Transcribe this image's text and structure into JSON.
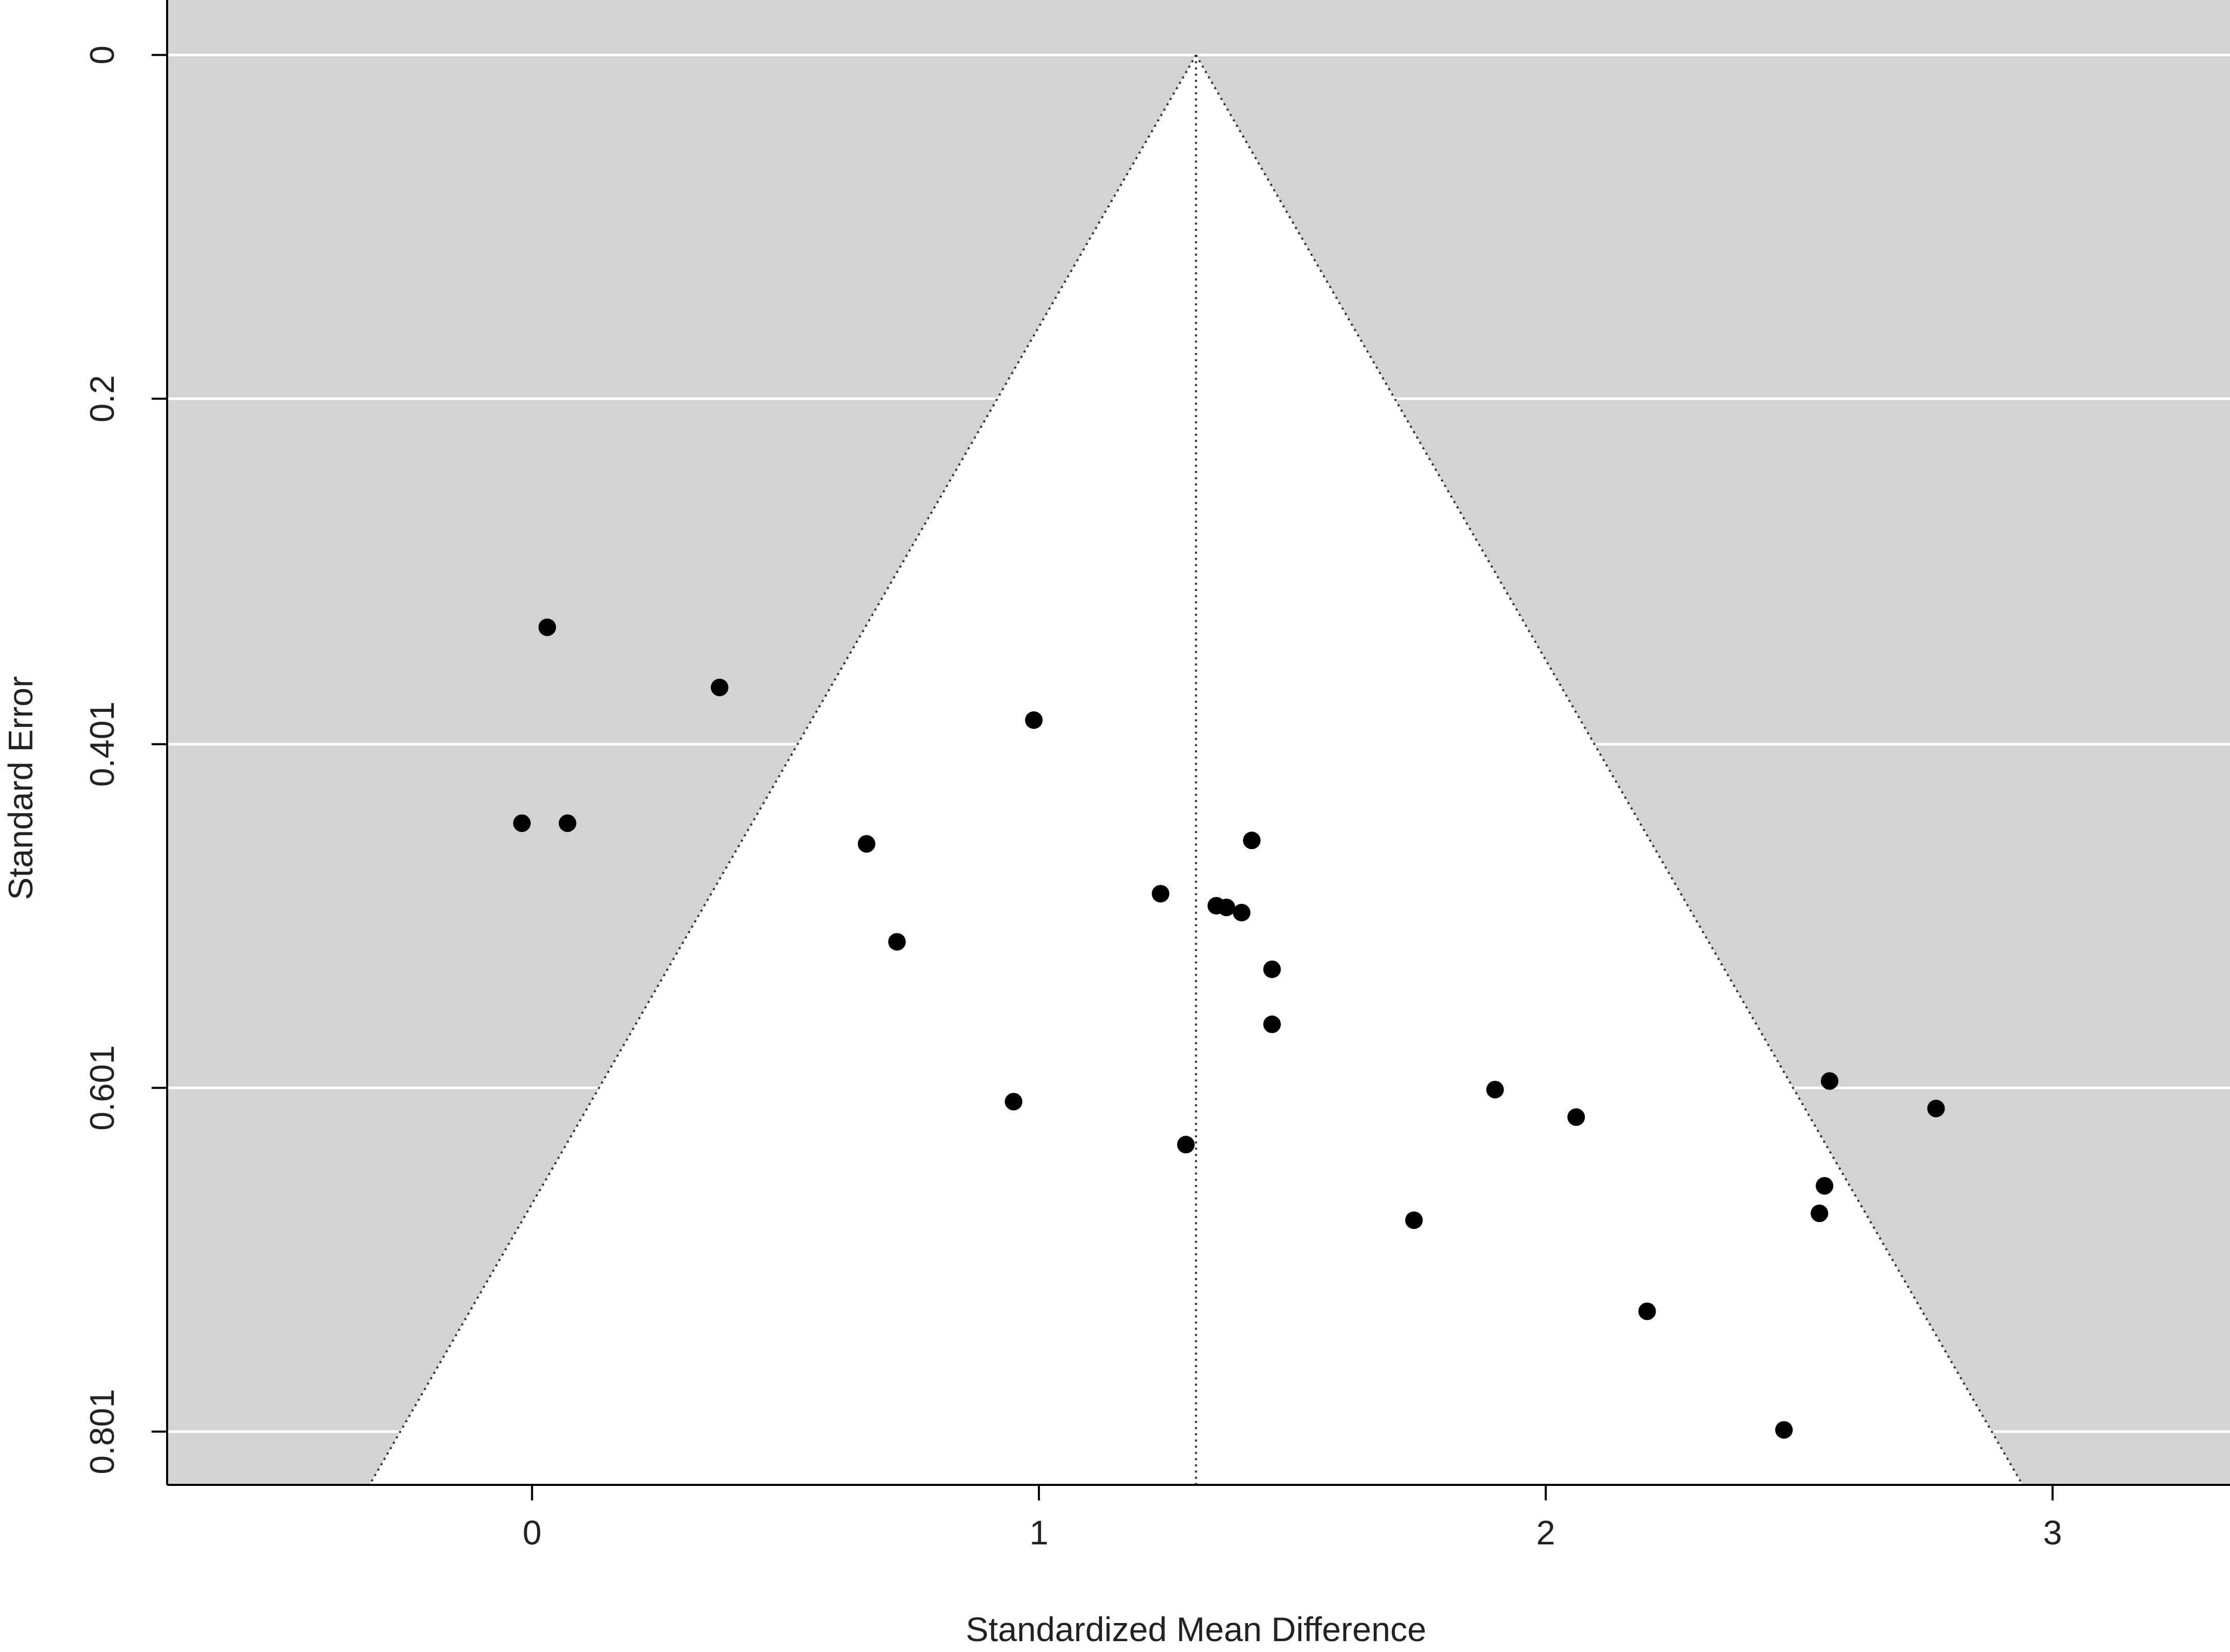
{
  "chart_data": {
    "type": "scatter",
    "subtype": "funnel plot",
    "title": "",
    "xlabel": "Standardized Mean Difference",
    "ylabel": "Standard Error",
    "xlim": [
      -0.72,
      3.35
    ],
    "ylim": [
      0.832,
      -0.032
    ],
    "y_axis_reversed": true,
    "x_ticks": [
      {
        "value": 0,
        "label": "0"
      },
      {
        "value": 1,
        "label": "1"
      },
      {
        "value": 2,
        "label": "2"
      },
      {
        "value": 3,
        "label": "3"
      }
    ],
    "y_ticks": [
      {
        "value": 0,
        "label": "0"
      },
      {
        "value": 0.2,
        "label": "0.2"
      },
      {
        "value": 0.401,
        "label": "0.401"
      },
      {
        "value": 0.601,
        "label": "0.601"
      },
      {
        "value": 0.801,
        "label": "0.801"
      }
    ],
    "grid": "horizontal",
    "funnel": {
      "center": 1.31,
      "z": 1.96
    },
    "colors": {
      "background": "#d3d3d3",
      "funnel": "#ffffff",
      "points": "#000000",
      "grid": "#ffffff"
    },
    "points": [
      {
        "x": 0.03,
        "y": 0.333
      },
      {
        "x": 0.37,
        "y": 0.368
      },
      {
        "x": -0.02,
        "y": 0.447
      },
      {
        "x": 0.07,
        "y": 0.447
      },
      {
        "x": 0.99,
        "y": 0.387
      },
      {
        "x": 0.66,
        "y": 0.459
      },
      {
        "x": 0.72,
        "y": 0.516
      },
      {
        "x": 1.24,
        "y": 0.488
      },
      {
        "x": 1.42,
        "y": 0.457
      },
      {
        "x": 1.35,
        "y": 0.495
      },
      {
        "x": 1.37,
        "y": 0.496
      },
      {
        "x": 1.4,
        "y": 0.499
      },
      {
        "x": 1.46,
        "y": 0.532
      },
      {
        "x": 1.46,
        "y": 0.564
      },
      {
        "x": 0.95,
        "y": 0.609
      },
      {
        "x": 1.29,
        "y": 0.634
      },
      {
        "x": 1.9,
        "y": 0.602
      },
      {
        "x": 2.06,
        "y": 0.618
      },
      {
        "x": 2.56,
        "y": 0.597
      },
      {
        "x": 2.77,
        "y": 0.613
      },
      {
        "x": 1.74,
        "y": 0.678
      },
      {
        "x": 2.55,
        "y": 0.658
      },
      {
        "x": 2.54,
        "y": 0.674
      },
      {
        "x": 2.2,
        "y": 0.731
      },
      {
        "x": 2.47,
        "y": 0.8
      }
    ]
  }
}
